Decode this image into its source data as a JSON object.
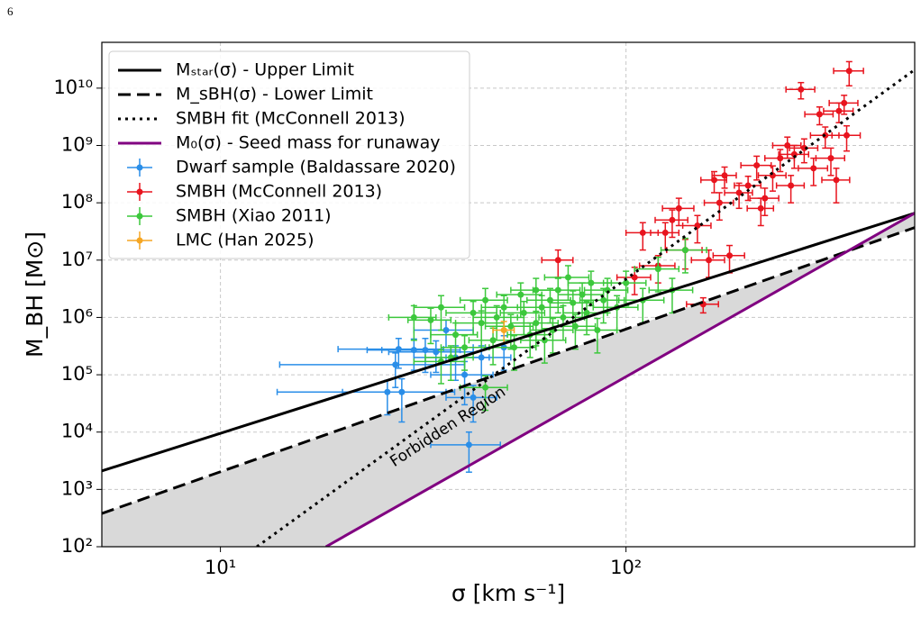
{
  "chart_data": {
    "type": "scatter",
    "page_label": "6",
    "xlabel": "σ [km s⁻¹]",
    "ylabel": "M_BH [M⊙]",
    "xscale": "log",
    "yscale": "log",
    "xlim": [
      5.1,
      515
    ],
    "ylim": [
      100,
      63000000000
    ],
    "xticks": [
      {
        "value": 10,
        "label": "10¹"
      },
      {
        "value": 100,
        "label": "10²"
      }
    ],
    "yticks": [
      {
        "value": 100,
        "label": "10²"
      },
      {
        "value": 1000,
        "label": "10³"
      },
      {
        "value": 10000,
        "label": "10⁴"
      },
      {
        "value": 100000,
        "label": "10⁵"
      },
      {
        "value": 1000000,
        "label": "10⁶"
      },
      {
        "value": 10000000,
        "label": "10⁷"
      },
      {
        "value": 100000000,
        "label": "10⁸"
      },
      {
        "value": 1000000000,
        "label": "10⁹"
      },
      {
        "value": 10000000000,
        "label": "10¹⁰"
      }
    ],
    "grid": true,
    "legend": "upper left",
    "forbidden_region": {
      "label": "Forbidden Region",
      "color": "#d9d9d9"
    },
    "lines": [
      {
        "name": "Mₛₜₐᵣ(σ) - Upper Limit",
        "color": "#000000",
        "style": "solid",
        "x": [
          5.1,
          515
        ],
        "y": [
          2100,
          66000000
        ]
      },
      {
        "name": "M_sBH(σ) - Lower Limit",
        "color": "#000000",
        "style": "dashed",
        "x": [
          5.1,
          515
        ],
        "y": [
          380,
          37000000
        ]
      },
      {
        "name": "SMBH fit (McConnell 2013)",
        "color": "#000000",
        "style": "dotted",
        "x": [
          12.3,
          515
        ],
        "y": [
          100,
          21000000000
        ]
      },
      {
        "name": "M₀(σ) - Seed mass for runaway",
        "color": "#800080",
        "style": "solid",
        "x": [
          18.2,
          515
        ],
        "y": [
          100,
          66000000
        ]
      }
    ],
    "series": [
      {
        "name": "Dwarf sample (Baldassare 2020)",
        "color": "#2a8ee8",
        "x": [
          27.5,
          28,
          30,
          32,
          34,
          36,
          38,
          40,
          41,
          42,
          44,
          50,
          25.8,
          27
        ],
        "y": [
          280000,
          50000,
          270000,
          270000,
          250000,
          600000,
          200000,
          100000,
          6000,
          40000,
          200000,
          300000,
          50000,
          150000
        ],
        "x_err": [
          8,
          8,
          7,
          7,
          8,
          6,
          8,
          7,
          8,
          6,
          8,
          8,
          12,
          13
        ],
        "y_err": [
          150000,
          35000,
          150000,
          160000,
          140000,
          300000,
          120000,
          70000,
          4000,
          25000,
          120000,
          180000,
          30000,
          90000
        ]
      },
      {
        "name": "SMBH (McConnell 2013)",
        "color": "#e8141e",
        "x": [
          68,
          105,
          110,
          120,
          125,
          130,
          135,
          140,
          155,
          150,
          160,
          165,
          170,
          175,
          180,
          190,
          200,
          210,
          215,
          220,
          230,
          240,
          250,
          255,
          260,
          275,
          290,
          300,
          310,
          320,
          330,
          335,
          345,
          350,
          355,
          270
        ],
        "y": [
          10000000,
          5000000,
          30000000,
          8000000,
          30000000,
          50000000,
          80000000,
          15000000,
          1700000,
          40000000,
          10000000,
          250000000,
          100000000,
          300000000,
          12000000,
          150000000,
          200000000,
          450000000,
          80000000,
          120000000,
          300000000,
          600000000,
          1000000000,
          200000000,
          700000000,
          900000000,
          400000000,
          3500000000,
          1500000000,
          600000000,
          250000000,
          4000000000,
          5500000000,
          1500000000,
          20000000000,
          9500000000
        ],
        "x_err": [
          6,
          10,
          10,
          12,
          10,
          12,
          12,
          14,
          14,
          12,
          15,
          12,
          14,
          12,
          16,
          15,
          15,
          18,
          16,
          18,
          18,
          20,
          20,
          20,
          22,
          22,
          24,
          24,
          25,
          26,
          26,
          28,
          28,
          28,
          30,
          22
        ],
        "y_err": [
          5000000,
          2500000,
          15000000,
          4000000,
          15000000,
          25000000,
          40000000,
          8000000,
          500000,
          20000000,
          5000000,
          100000000,
          50000000,
          120000000,
          6000000,
          70000000,
          90000000,
          200000000,
          40000000,
          60000000,
          140000000,
          250000000,
          400000000,
          100000000,
          300000000,
          400000000,
          200000000,
          1200000000,
          600000000,
          300000000,
          150000000,
          1500000000,
          2000000000,
          700000000,
          9000000000,
          3000000000
        ]
      },
      {
        "name": "SMBH (Xiao 2011)",
        "color": "#3cc83c",
        "x": [
          30,
          33,
          35,
          37,
          38,
          40,
          42,
          44,
          45,
          47,
          48,
          50,
          52,
          53,
          55,
          56,
          58,
          60,
          60,
          62,
          63,
          65,
          66,
          68,
          70,
          72,
          74,
          75,
          78,
          80,
          82,
          85,
          88,
          90,
          95,
          100,
          110,
          120,
          130,
          140,
          35,
          45
        ],
        "y": [
          1000000,
          900000,
          1500000,
          200000,
          500000,
          300000,
          1200000,
          800000,
          2000000,
          400000,
          1000000,
          1500000,
          700000,
          300000,
          2500000,
          1200000,
          500000,
          800000,
          3000000,
          1500000,
          400000,
          2000000,
          600000,
          3000000,
          1000000,
          5000000,
          1800000,
          700000,
          2500000,
          1200000,
          4000000,
          600000,
          2000000,
          3000000,
          1500000,
          4000000,
          2000000,
          7000000,
          3000000,
          15000000,
          170000,
          60000
        ],
        "x_err": [
          4,
          4,
          5,
          5,
          5,
          5,
          6,
          6,
          6,
          6,
          6,
          6,
          7,
          7,
          7,
          7,
          7,
          8,
          8,
          8,
          8,
          8,
          8,
          9,
          9,
          9,
          9,
          9,
          10,
          10,
          10,
          10,
          11,
          11,
          12,
          12,
          14,
          15,
          16,
          18,
          5,
          6
        ],
        "y_err": [
          600000,
          550000,
          900000,
          120000,
          300000,
          180000,
          700000,
          500000,
          1200000,
          250000,
          600000,
          900000,
          420000,
          180000,
          1500000,
          700000,
          300000,
          480000,
          1800000,
          900000,
          240000,
          1200000,
          360000,
          1800000,
          600000,
          3000000,
          1100000,
          420000,
          1500000,
          700000,
          2400000,
          360000,
          1200000,
          1800000,
          900000,
          2400000,
          1200000,
          4200000,
          1800000,
          9000000,
          100000,
          36000
        ]
      },
      {
        "name": "LMC (Han 2025)",
        "color": "#f5a623",
        "x": [
          50
        ],
        "y": [
          600000
        ],
        "x_err": [
          3
        ],
        "y_err": [
          250000
        ]
      }
    ]
  }
}
